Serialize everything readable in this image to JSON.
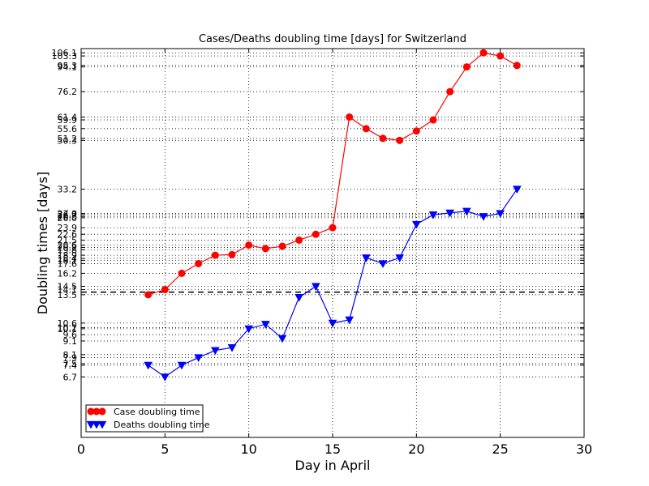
{
  "chart_data": {
    "type": "line",
    "title": "Cases/Deaths doubling time [days] for Switzerland",
    "xlabel": "Day in April",
    "ylabel": "Doubling times [days]",
    "xlim": [
      0,
      30
    ],
    "ylim": [
      4,
      110
    ],
    "yscale": "log",
    "grid": "dotted at each labelled tick",
    "x_ticks": [
      0,
      5,
      10,
      15,
      20,
      25,
      30
    ],
    "y_ticks": [
      6.7,
      7.4,
      7.5,
      7.9,
      8.1,
      9.1,
      9.6,
      10.1,
      10.2,
      10.6,
      13.5,
      14.1,
      14.5,
      16.2,
      17.6,
      18.1,
      18.4,
      18.9,
      19.8,
      20.2,
      20.6,
      21.5,
      22.6,
      23.9,
      26.0,
      26.3,
      26.7,
      27.0,
      33.2,
      50.3,
      51.2,
      55.6,
      59.9,
      61.4,
      76.2,
      94.1,
      95.3,
      103.3,
      106.1
    ],
    "reference_line": {
      "y": 13.8,
      "style": "dashed"
    },
    "series": [
      {
        "name": "Case doubling time",
        "color": "#ff0000",
        "marker": "circle",
        "x": [
          4,
          5,
          6,
          7,
          8,
          9,
          10,
          11,
          12,
          13,
          14,
          15,
          16,
          17,
          18,
          19,
          20,
          21,
          22,
          23,
          24,
          25,
          26
        ],
        "y": [
          13.5,
          14.1,
          16.2,
          17.6,
          18.9,
          19.0,
          20.6,
          20.0,
          20.4,
          21.5,
          22.6,
          23.9,
          61.4,
          55.6,
          51.2,
          50.3,
          54.5,
          59.9,
          76.2,
          94.1,
          106.1,
          103.3,
          95.3
        ]
      },
      {
        "name": "Deaths doubling time",
        "color": "#0000ff",
        "marker": "triangle-down",
        "x": [
          4,
          5,
          6,
          7,
          8,
          9,
          10,
          11,
          12,
          13,
          14,
          15,
          16,
          17,
          18,
          19,
          20,
          21,
          22,
          23,
          24,
          25,
          26
        ],
        "y": [
          7.4,
          6.7,
          7.4,
          7.9,
          8.4,
          8.6,
          10.1,
          10.5,
          9.3,
          13.2,
          14.5,
          10.6,
          10.9,
          18.5,
          17.6,
          18.5,
          24.6,
          26.7,
          27.1,
          27.5,
          26.3,
          27.0,
          33.2
        ]
      }
    ],
    "legend": {
      "placement": "lower-left",
      "entries": [
        "Case doubling time",
        "Deaths doubling time"
      ]
    }
  }
}
